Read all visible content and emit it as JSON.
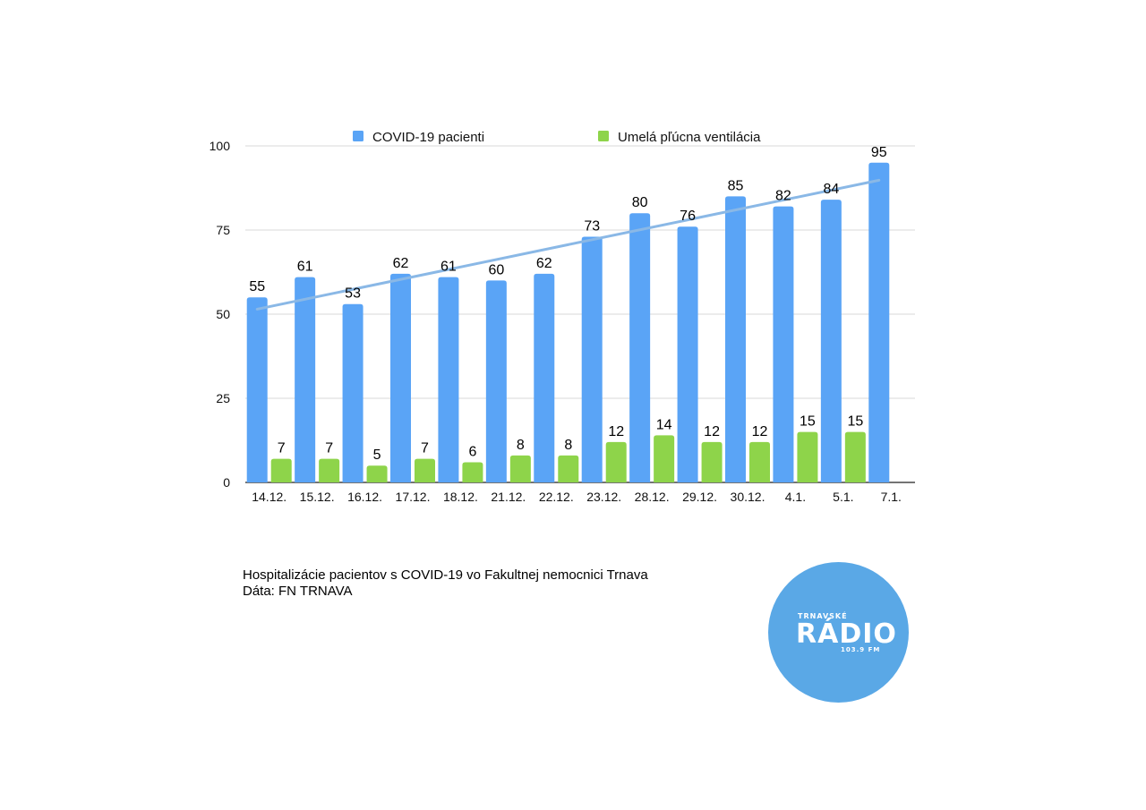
{
  "chart_data": {
    "type": "bar",
    "categories": [
      "14.12.",
      "15.12.",
      "16.12.",
      "17.12.",
      "18.12.",
      "21.12.",
      "22.12.",
      "23.12.",
      "28.12.",
      "29.12.",
      "30.12.",
      "4.1.",
      "5.1.",
      "7.1."
    ],
    "series": [
      {
        "name": "COVID-19 pacienti",
        "color": "#5aa4f6",
        "values": [
          55,
          61,
          53,
          62,
          61,
          60,
          62,
          73,
          80,
          76,
          85,
          82,
          84,
          95
        ]
      },
      {
        "name": "Umelá pľúcna ventilácia",
        "color": "#8ed44a",
        "values": [
          7,
          7,
          5,
          7,
          6,
          8,
          8,
          12,
          14,
          12,
          12,
          15,
          15,
          null
        ]
      }
    ],
    "trendline": {
      "series": "COVID-19 pacienti",
      "type": "linear",
      "color": "#8ab8e6"
    },
    "ylim": [
      0,
      100
    ],
    "yticks": [
      0,
      25,
      50,
      75,
      100
    ],
    "grid": true,
    "legend": "top"
  },
  "caption": {
    "line1": "Hospitalizácie pacientov s COVID-19 vo Fakultnej nemocnici Trnava",
    "line2": "Dáta: FN TRNAVA"
  },
  "logo": {
    "top": "TRNAVSKÉ",
    "main": "RÁDIO",
    "sub": "103.9 FM",
    "color": "#5aa8e6"
  }
}
